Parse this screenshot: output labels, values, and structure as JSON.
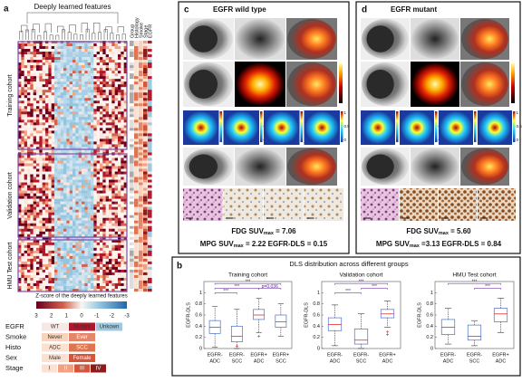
{
  "panel_a": {
    "label": "a",
    "title": "Deeply learned features",
    "columns": [
      "Group",
      "Histology",
      "Smoke",
      "Stage",
      "EGFR"
    ],
    "cohorts": [
      "Training cohort",
      "Validation cohort",
      "HMU Test cohort"
    ],
    "colorbar_title": "Z-score of the deeply learned features",
    "colorbar_ticks": [
      3,
      2,
      1,
      0,
      -1,
      -2,
      -3
    ],
    "legend": [
      {
        "name": "EGFR",
        "items": [
          "WT",
          "Mutant",
          "Unkown"
        ],
        "colors": [
          "#f6e8e4",
          "#b2182b",
          "#9ecae1"
        ]
      },
      {
        "name": "Smoke",
        "items": [
          "Never",
          "Ever"
        ],
        "colors": [
          "#f8d3bd",
          "#e4866a"
        ]
      },
      {
        "name": "Histo",
        "items": [
          "ADC",
          "SCC"
        ],
        "colors": [
          "#fbe1d2",
          "#e0744f"
        ]
      },
      {
        "name": "Sex",
        "items": [
          "Male",
          "Female"
        ],
        "colors": [
          "#fbe1d2",
          "#d4553a"
        ]
      },
      {
        "name": "Stage",
        "items": [
          "I",
          "II",
          "III",
          "IV"
        ],
        "colors": [
          "#fbe1d2",
          "#f0a184",
          "#d4553a",
          "#8e1b1b"
        ]
      }
    ]
  },
  "panel_c": {
    "label": "c",
    "title": "EGFR wild type",
    "scale_labels": [
      "1",
      "0.5",
      "0"
    ],
    "fdg": [
      "FDG SUV",
      "max",
      " = 7.06"
    ],
    "mpg": [
      "MPG SUV",
      "max",
      " = 2.22 EGFR-DLS = 0.15"
    ]
  },
  "panel_d": {
    "label": "d",
    "title": "EGFR mutant",
    "scale_labels": [
      "1",
      "0.5",
      "0"
    ],
    "fdg": [
      "FDG SUV",
      "max",
      " = 5.60"
    ],
    "mpg": [
      "MPG SUV",
      "max",
      " =3.13 EGFR-DLS = 0.84"
    ]
  },
  "panel_b": {
    "label": "b",
    "title": "DLS distribution across different groups"
  },
  "chart_data": [
    {
      "type": "box",
      "title": "Training cohort",
      "y_label": "EGFR-DLS",
      "categories": [
        [
          "EGFR-",
          "ADC"
        ],
        [
          "EGFR-",
          "SCC"
        ],
        [
          "EGFR+",
          "ADC"
        ],
        [
          "EGFR+",
          "SCC"
        ]
      ],
      "boxes": [
        {
          "low": 0.02,
          "q1": 0.27,
          "median": 0.38,
          "q3": 0.5,
          "high": 0.75
        },
        {
          "low": 0.0,
          "q1": 0.12,
          "median": 0.22,
          "q3": 0.4,
          "high": 0.7
        },
        {
          "low": 0.28,
          "q1": 0.52,
          "median": 0.6,
          "q3": 0.7,
          "high": 0.9
        },
        {
          "low": 0.22,
          "q1": 0.38,
          "median": 0.48,
          "q3": 0.6,
          "high": 0.8
        }
      ],
      "outliers": [
        [],
        [
          0.04
        ],
        [
          0.22
        ],
        []
      ],
      "brackets": [
        "***",
        "***",
        "p=0.036",
        "***"
      ],
      "ylim": [
        0,
        1.2
      ],
      "yticks": [
        0,
        0.2,
        0.4,
        0.6,
        0.8,
        1
      ]
    },
    {
      "type": "box",
      "title": "Validation cohort",
      "y_label": "EGFR-DLS",
      "categories": [
        [
          "EGFR-",
          "ADC"
        ],
        [
          "EGFR-",
          "SCC"
        ],
        [
          "EGFR+",
          "ADC"
        ]
      ],
      "boxes": [
        {
          "low": 0.05,
          "q1": 0.32,
          "median": 0.43,
          "q3": 0.55,
          "high": 0.78
        },
        {
          "low": 0.0,
          "q1": 0.08,
          "median": 0.15,
          "q3": 0.35,
          "high": 0.62
        },
        {
          "low": 0.38,
          "q1": 0.55,
          "median": 0.62,
          "q3": 0.7,
          "high": 0.85
        }
      ],
      "outliers": [
        [],
        [],
        [
          0.3,
          0.25
        ]
      ],
      "brackets": [
        "***",
        "***",
        "***"
      ],
      "ylim": [
        0,
        1.2
      ],
      "yticks": [
        0,
        0.2,
        0.4,
        0.6,
        0.8,
        1
      ]
    },
    {
      "type": "box",
      "title": "HMU Test cohort",
      "y_label": "EGFR-DLS",
      "categories": [
        [
          "EGFR-",
          "ADC"
        ],
        [
          "EGFR-",
          "SCC"
        ],
        [
          "EGFR+",
          "ADC"
        ]
      ],
      "boxes": [
        {
          "low": 0.08,
          "q1": 0.25,
          "median": 0.38,
          "q3": 0.52,
          "high": 0.72
        },
        {
          "low": 0.05,
          "q1": 0.15,
          "median": 0.22,
          "q3": 0.42,
          "high": 0.5
        },
        {
          "low": 0.28,
          "q1": 0.48,
          "median": 0.62,
          "q3": 0.72,
          "high": 0.9
        }
      ],
      "outliers": [
        [],
        [],
        []
      ],
      "brackets": [
        "***",
        "***"
      ],
      "ylim": [
        0,
        1.2
      ],
      "yticks": [
        0,
        0.2,
        0.4,
        0.6,
        0.8,
        1
      ]
    }
  ]
}
